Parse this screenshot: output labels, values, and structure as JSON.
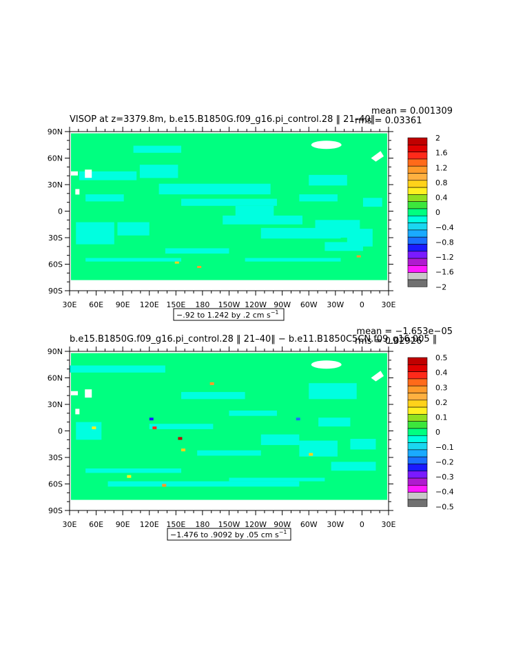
{
  "chart_data": [
    {
      "type": "heatmap",
      "title": "VISOP at z=3379.8m, b.e15.B1850G.f09_g16.pi_control.28 ‖ 21–40‖",
      "stats": {
        "mean": "mean = 0.001309",
        "rms": "rms = 0.03361"
      },
      "range_label": "−.92 to 1.242 by .2 cm s",
      "range_unit_exp": "−1",
      "x_ticks": [
        "30E",
        "60E",
        "90E",
        "120E",
        "150E",
        "180",
        "150W",
        "120W",
        "90W",
        "60W",
        "30W",
        "0",
        "30E"
      ],
      "y_ticks": [
        "90N",
        "60N",
        "30N",
        "0",
        "30S",
        "60S",
        "90S"
      ],
      "colorbar": {
        "labels": [
          "2",
          "1.6",
          "1.2",
          "0.8",
          "0.4",
          "0",
          "−0.4",
          "−0.8",
          "−1.2",
          "−1.6",
          "−2"
        ],
        "colors": [
          "#c00000",
          "#e00000",
          "#ff2a1a",
          "#ff6a1a",
          "#ff9a2a",
          "#ffb040",
          "#ffd21a",
          "#fff020",
          "#90e020",
          "#3ce63c",
          "#00ff80",
          "#00ffe0",
          "#1ad7f0",
          "#1aaaff",
          "#1a70ff",
          "#1a1aff",
          "#7a1aff",
          "#b01ad0",
          "#ff1aff",
          "#c8c8c8",
          "#707070"
        ]
      }
    },
    {
      "type": "heatmap",
      "title": "b.e15.B1850G.f09_g16.pi_control.28 ‖ 21–40‖ − b.e11.B1850C5CN.f09_g16.005 ‖",
      "stats": {
        "mean": "mean = −1.653e−05",
        "rms": "rms = 0.02926"
      },
      "range_label": "−1.476 to .9092 by .05 cm s",
      "range_unit_exp": "−1",
      "x_ticks": [
        "30E",
        "60E",
        "90E",
        "120E",
        "150E",
        "180",
        "150W",
        "120W",
        "90W",
        "60W",
        "30W",
        "0",
        "30E"
      ],
      "y_ticks": [
        "90N",
        "60N",
        "30N",
        "0",
        "30S",
        "60S",
        "90S"
      ],
      "colorbar": {
        "labels": [
          "0.5",
          "0.4",
          "0.3",
          "0.2",
          "0.1",
          "0",
          "−0.1",
          "−0.2",
          "−0.3",
          "−0.4",
          "−0.5"
        ],
        "colors": [
          "#c00000",
          "#e00000",
          "#ff2a1a",
          "#ff6a1a",
          "#ff9a2a",
          "#ffb040",
          "#ffd21a",
          "#fff020",
          "#90e020",
          "#3ce63c",
          "#00ff80",
          "#00ffe0",
          "#1ad7f0",
          "#1aaaff",
          "#1a70ff",
          "#1a1aff",
          "#7a1aff",
          "#b01ad0",
          "#ff1aff",
          "#c8c8c8",
          "#707070"
        ]
      }
    }
  ]
}
